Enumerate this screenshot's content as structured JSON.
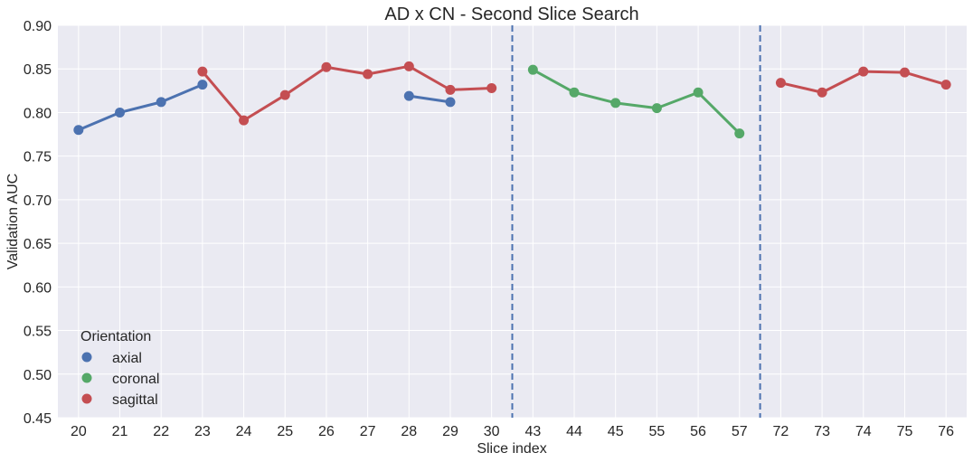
{
  "chart_data": {
    "type": "line",
    "title": "AD x CN - Second Slice Search",
    "xlabel": "Slice index",
    "ylabel": "Validation AUC",
    "ylim": [
      0.45,
      0.9
    ],
    "yticks": [
      "0.45",
      "0.50",
      "0.55",
      "0.60",
      "0.65",
      "0.70",
      "0.75",
      "0.80",
      "0.85",
      "0.90"
    ],
    "categories": [
      "20",
      "21",
      "22",
      "23",
      "24",
      "25",
      "26",
      "27",
      "28",
      "29",
      "30",
      "43",
      "44",
      "45",
      "55",
      "56",
      "57",
      "72",
      "73",
      "74",
      "75",
      "76"
    ],
    "grid": true,
    "legend": {
      "title": "Orientation",
      "placement": "lower-left"
    },
    "vlines_between": [
      [
        "30",
        "43"
      ],
      [
        "57",
        "72"
      ]
    ],
    "series": [
      {
        "name": "axial",
        "color": "#4c72b0",
        "segments": [
          [
            [
              "20",
              0.78
            ],
            [
              "21",
              0.8
            ],
            [
              "22",
              0.812
            ],
            [
              "23",
              0.832
            ]
          ],
          [
            [
              "28",
              0.819
            ],
            [
              "29",
              0.812
            ]
          ]
        ]
      },
      {
        "name": "coronal",
        "color": "#55a868",
        "segments": [
          [
            [
              "43",
              0.849
            ],
            [
              "44",
              0.823
            ],
            [
              "45",
              0.811
            ],
            [
              "55",
              0.805
            ],
            [
              "56",
              0.823
            ],
            [
              "57",
              0.776
            ]
          ]
        ]
      },
      {
        "name": "sagittal",
        "color": "#c44e52",
        "segments": [
          [
            [
              "23",
              0.847
            ],
            [
              "24",
              0.791
            ],
            [
              "25",
              0.82
            ],
            [
              "26",
              0.852
            ],
            [
              "27",
              0.844
            ],
            [
              "28",
              0.853
            ],
            [
              "29",
              0.826
            ],
            [
              "30",
              0.828
            ]
          ],
          [
            [
              "72",
              0.834
            ],
            [
              "73",
              0.823
            ],
            [
              "74",
              0.847
            ],
            [
              "75",
              0.846
            ],
            [
              "76",
              0.832
            ]
          ]
        ]
      }
    ]
  }
}
